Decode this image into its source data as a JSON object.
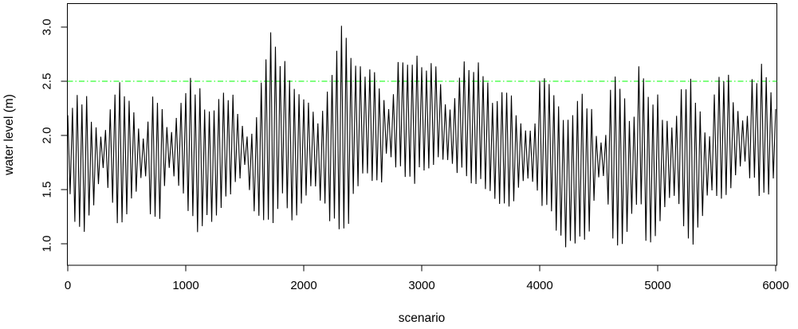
{
  "figure": {
    "background": "#ffffff",
    "type_hint": "R-base-plot"
  },
  "chart_data": {
    "type": "line",
    "title": "",
    "xlabel": "scenario",
    "ylabel": "water level (m)",
    "xlim": [
      0,
      6000
    ],
    "x_ticks": [
      0,
      1000,
      2000,
      3000,
      4000,
      5000,
      6000
    ],
    "y_tick_labels": [
      "1.0",
      "1.5",
      "2.0",
      "2.5",
      "3.0"
    ],
    "y_tick_values": [
      1.0,
      1.5,
      2.0,
      2.5,
      3.0
    ],
    "grid": false,
    "legend": "none",
    "series_color": "#000000",
    "threshold_line": {
      "y": 2.5,
      "color": "#00FF00",
      "style": "dash-dot"
    },
    "series_representation": "dense oscillating series (~6000 points, half-period ~20 scenarios) summarized by upper/lower amplitude envelope sampled every 50 scenarios",
    "oscillation_half_period": 20,
    "envelope_x_start": 0,
    "envelope_x_step": 50,
    "upper_envelope": [
      2.2,
      2.4,
      2.42,
      2.43,
      2.17,
      2.05,
      1.95,
      2.24,
      2.5,
      2.57,
      2.45,
      2.3,
      2.1,
      1.97,
      2.35,
      2.41,
      2.3,
      2.04,
      2.1,
      2.3,
      2.46,
      2.55,
      2.5,
      2.39,
      2.28,
      2.24,
      2.5,
      2.42,
      2.4,
      2.2,
      2.05,
      2.0,
      2.24,
      2.55,
      3.0,
      3.08,
      2.72,
      2.75,
      2.55,
      2.48,
      2.42,
      2.32,
      2.18,
      2.22,
      2.55,
      2.75,
      3.05,
      3.1,
      2.9,
      2.7,
      2.6,
      2.67,
      2.64,
      2.45,
      2.25,
      2.3,
      2.72,
      2.78,
      2.76,
      2.8,
      2.7,
      2.65,
      2.68,
      2.55,
      2.33,
      2.26,
      2.45,
      2.7,
      2.68,
      2.7,
      2.68,
      2.55,
      2.4,
      2.42,
      2.44,
      2.4,
      2.25,
      2.12,
      2.08,
      2.08,
      2.5,
      2.58,
      2.48,
      2.3,
      2.26,
      2.25,
      2.33,
      2.38,
      2.37,
      2.2,
      1.95,
      1.93,
      2.45,
      2.56,
      2.53,
      2.28,
      2.2,
      2.77,
      2.4,
      2.4,
      2.42,
      2.18,
      2.1,
      2.12,
      2.48,
      2.55,
      2.5,
      2.3,
      2.08,
      2.05,
      2.6,
      2.62,
      2.58,
      2.35,
      2.2,
      2.16,
      2.55,
      2.62,
      2.68,
      2.55,
      2.3
    ],
    "lower_envelope": [
      1.55,
      1.2,
      1.1,
      1.08,
      1.26,
      1.45,
      1.7,
      1.43,
      1.18,
      1.06,
      1.17,
      1.35,
      1.55,
      1.65,
      1.26,
      1.11,
      1.3,
      1.7,
      1.58,
      1.5,
      1.35,
      1.2,
      1.08,
      1.16,
      1.18,
      1.25,
      1.33,
      1.35,
      1.45,
      1.55,
      1.7,
      1.45,
      1.21,
      1.18,
      1.2,
      1.2,
      1.4,
      1.18,
      1.12,
      1.25,
      1.4,
      1.5,
      1.48,
      1.3,
      1.22,
      1.18,
      1.1,
      1.12,
      1.2,
      1.45,
      1.58,
      1.63,
      1.55,
      1.5,
      1.8,
      1.75,
      1.62,
      1.6,
      1.58,
      1.54,
      1.62,
      1.7,
      1.64,
      1.72,
      1.8,
      1.7,
      1.65,
      1.6,
      1.55,
      1.5,
      1.48,
      1.46,
      1.43,
      1.3,
      1.27,
      1.24,
      1.4,
      1.52,
      1.56,
      1.58,
      1.38,
      1.25,
      1.2,
      1.05,
      0.99,
      0.96,
      0.93,
      0.95,
      0.97,
      1.25,
      1.6,
      1.62,
      1.15,
      0.92,
      0.9,
      1.0,
      1.3,
      1.35,
      1.02,
      0.97,
      0.96,
      1.3,
      1.4,
      1.45,
      1.12,
      0.89,
      0.92,
      1.05,
      1.4,
      1.42,
      1.43,
      1.4,
      1.39,
      1.6,
      1.7,
      1.72,
      1.52,
      1.45,
      1.43,
      1.47,
      1.7
    ],
    "value_range_observed": [
      0.89,
      3.11
    ]
  }
}
